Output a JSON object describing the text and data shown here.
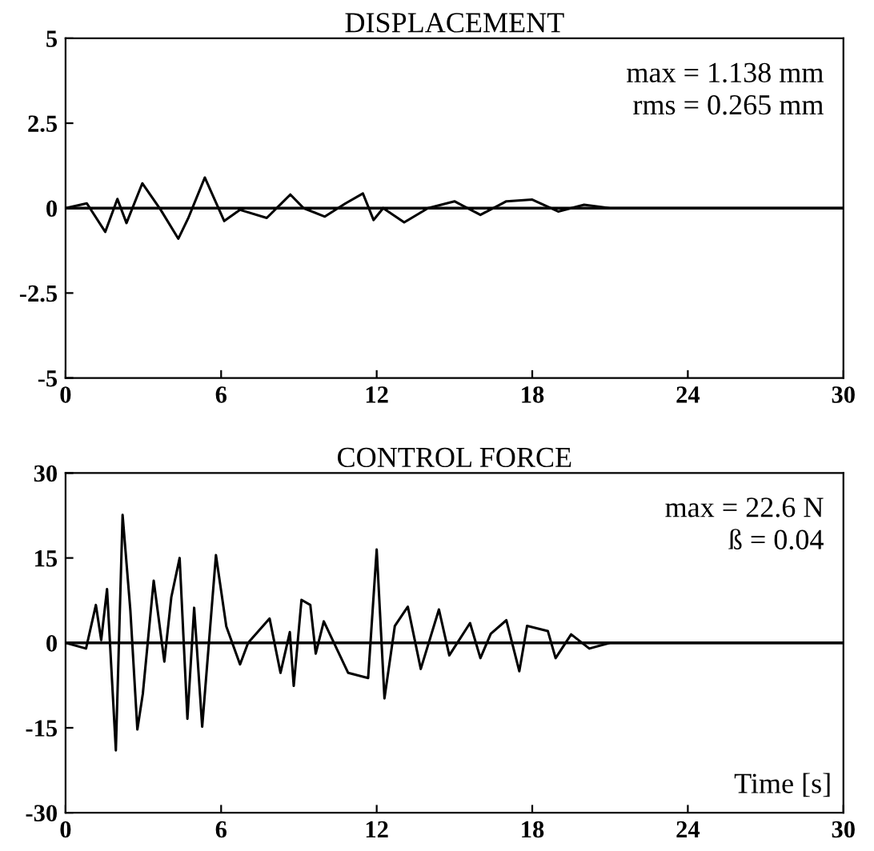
{
  "chart_data": [
    {
      "type": "line",
      "title": "DISPLACEMENT",
      "annotations": [
        "max = 1.138 mm",
        "rms = 0.265 mm"
      ],
      "x": [
        0,
        0.82,
        1.53,
        2.0,
        2.35,
        2.96,
        3.67,
        4.35,
        4.73,
        5.37,
        6.12,
        6.73,
        7.76,
        8.67,
        9.18,
        10.0,
        10.8,
        11.47,
        11.88,
        12.25,
        13.06,
        13.98,
        15.0,
        16.0,
        17.0,
        18.0,
        19.0,
        20.0,
        21.0,
        30
      ],
      "series": [
        {
          "color": "#000000",
          "values": [
            0,
            0.14,
            -0.7,
            0.27,
            -0.44,
            0.73,
            -0.05,
            -0.9,
            -0.3,
            0.9,
            -0.38,
            -0.05,
            -0.29,
            0.4,
            0.0,
            -0.25,
            0.14,
            0.43,
            -0.35,
            0.0,
            -0.42,
            0.0,
            0.2,
            -0.2,
            0.2,
            0.25,
            -0.1,
            0.1,
            0,
            0
          ]
        }
      ],
      "xlim": [
        0,
        30
      ],
      "xticks": [
        0,
        6,
        12,
        18,
        24,
        30
      ],
      "ylim": [
        -5,
        5
      ],
      "yticks": [
        -5,
        -2.5,
        0,
        2.5,
        5
      ],
      "ref_lines": [
        {
          "axis": "y",
          "value": 0
        }
      ],
      "grid": false,
      "legend": false
    },
    {
      "type": "line",
      "title": "CONTROL FORCE",
      "xlabel": "Time [s]",
      "annotations": [
        "max = 22.6 N",
        "ß = 0.04"
      ],
      "x": [
        0,
        0.79,
        1.17,
        1.375,
        1.6,
        1.94,
        2.2,
        2.5,
        2.77,
        2.98,
        3.4,
        3.81,
        4.08,
        4.4,
        4.7,
        4.96,
        5.27,
        5.8,
        6.2,
        6.73,
        7.04,
        7.87,
        8.29,
        8.65,
        8.8,
        9.1,
        9.44,
        9.65,
        9.96,
        10.9,
        11.67,
        12.0,
        12.3,
        12.7,
        13.2,
        13.7,
        14.4,
        14.8,
        15.6,
        16.0,
        16.4,
        17.0,
        17.5,
        17.8,
        18.6,
        18.9,
        19.5,
        20.2,
        21.0,
        30
      ],
      "series": [
        {
          "color": "#000000",
          "values": [
            0,
            -1,
            6.7,
            0.5,
            9.5,
            -19,
            22.6,
            5.7,
            -15.3,
            -9,
            11,
            -3.3,
            8.1,
            15,
            -13.4,
            6.2,
            -14.8,
            15.5,
            2.9,
            -3.8,
            0,
            4.3,
            -5.3,
            1.9,
            -7.6,
            7.6,
            6.7,
            -1.9,
            3.8,
            -5.3,
            -6.2,
            16.5,
            -9.8,
            3,
            6.4,
            -4.6,
            5.9,
            -2.2,
            3.5,
            -2.7,
            1.6,
            4,
            -5,
            3,
            2.1,
            -2.7,
            1.5,
            -1,
            0,
            0
          ]
        }
      ],
      "xlim": [
        0,
        30
      ],
      "xticks": [
        0,
        6,
        12,
        18,
        24,
        30
      ],
      "ylim": [
        -30,
        30
      ],
      "yticks": [
        -30,
        -15,
        0,
        15,
        30
      ],
      "ref_lines": [
        {
          "axis": "y",
          "value": 0
        }
      ],
      "grid": false,
      "legend": false
    }
  ]
}
